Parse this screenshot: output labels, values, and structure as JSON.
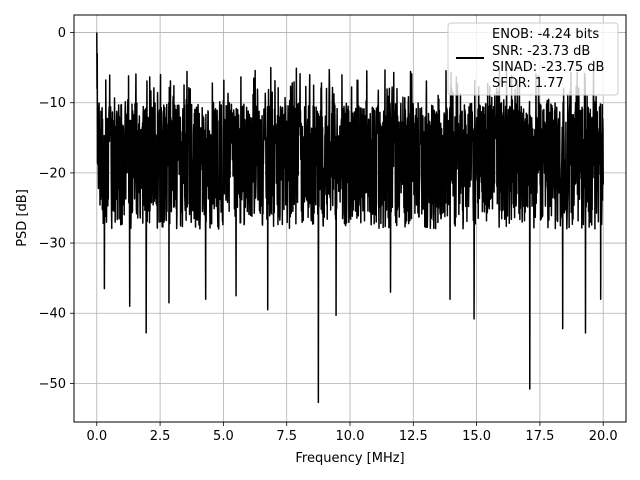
{
  "chart_data": {
    "type": "line",
    "title": "",
    "xlabel": "Frequency [MHz]",
    "ylabel": "PSD [dB]",
    "xlim": [
      -0.9,
      20.9
    ],
    "ylim": [
      -55.5,
      2.5
    ],
    "xticks": [
      0.0,
      2.5,
      5.0,
      7.5,
      10.0,
      12.5,
      15.0,
      17.5,
      20.0
    ],
    "xtick_labels": [
      "0.0",
      "2.5",
      "5.0",
      "7.5",
      "10.0",
      "12.5",
      "15.0",
      "17.5",
      "20.0"
    ],
    "yticks": [
      0,
      -10,
      -20,
      -30,
      -40,
      -50
    ],
    "ytick_labels": [
      "0",
      "−10",
      "−20",
      "−30",
      "−40",
      "−50"
    ],
    "grid": true,
    "legend_position": "top-right",
    "series": [
      {
        "color": "#000000",
        "description": "noise-like PSD trace, approximately -10 to -28 dB band with spikes",
        "x_range": [
          0,
          20
        ],
        "peak": {
          "x": 0.0,
          "y": 0.0
        },
        "notable_minima": [
          {
            "x": 0.3,
            "y": -36.5
          },
          {
            "x": 1.3,
            "y": -39
          },
          {
            "x": 1.95,
            "y": -42.8
          },
          {
            "x": 2.85,
            "y": -38.5
          },
          {
            "x": 4.3,
            "y": -38
          },
          {
            "x": 5.5,
            "y": -37.5
          },
          {
            "x": 6.75,
            "y": -39.5
          },
          {
            "x": 8.75,
            "y": -52.7
          },
          {
            "x": 9.45,
            "y": -40.3
          },
          {
            "x": 11.6,
            "y": -37
          },
          {
            "x": 13.95,
            "y": -38
          },
          {
            "x": 14.9,
            "y": -40.8
          },
          {
            "x": 17.1,
            "y": -50.8
          },
          {
            "x": 18.4,
            "y": -42.2
          },
          {
            "x": 19.3,
            "y": -42.8
          },
          {
            "x": 19.9,
            "y": -38
          }
        ]
      }
    ]
  },
  "legend": {
    "lines": [
      "ENOB: -4.24 bits",
      "SNR: -23.73 dB",
      "SINAD: -23.75 dB",
      "SFDR: 1.77"
    ]
  }
}
